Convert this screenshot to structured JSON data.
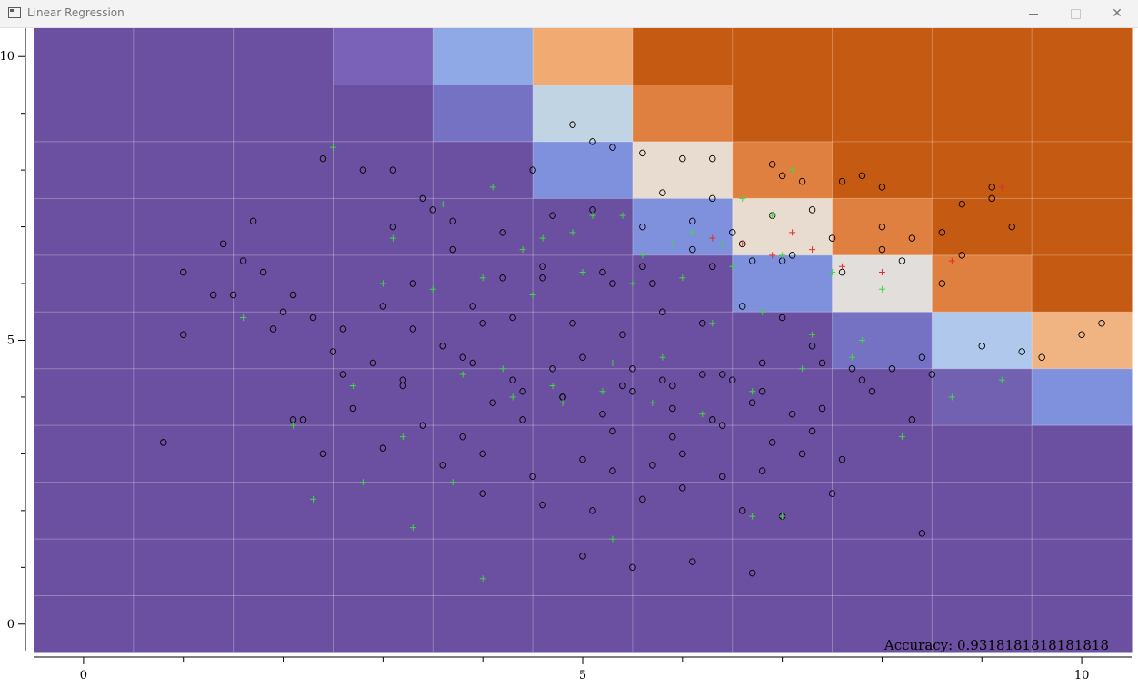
{
  "window": {
    "title": "Linear Regression",
    "icons": {
      "app": "app-window-icon",
      "minimize": "minimize-icon",
      "maximize": "maximize-icon",
      "close": "close-icon"
    }
  },
  "chart_data": {
    "type": "scatter",
    "title": "",
    "xlabel": "",
    "ylabel": "",
    "xlim": [
      -0.5,
      10.5
    ],
    "ylim": [
      -0.5,
      10.5
    ],
    "xticks": [
      "0",
      "5",
      "10"
    ],
    "yticks": [
      "0",
      "5",
      "10"
    ],
    "grid": true,
    "annotation": "Accuracy: 0.9318181818181818",
    "background_grid": {
      "x_edges": [
        -0.5,
        0.5,
        1.5,
        2.5,
        3.5,
        4.5,
        5.5,
        6.5,
        7.5,
        8.5,
        9.5,
        10.5
      ],
      "y_edges": [
        10.5,
        9.5,
        8.5,
        7.5,
        6.5,
        5.5,
        4.5,
        3.5,
        2.5,
        1.5,
        0.5,
        -0.5
      ],
      "colors": [
        [
          "#6b4fa0",
          "#6b4fa0",
          "#6b4fa0",
          "#7a62b8",
          "#8fa8e6",
          "#f0aa72",
          "#c55a12",
          "#c55a12",
          "#c55a12",
          "#c55a12",
          "#c55a12"
        ],
        [
          "#6b4fa0",
          "#6b4fa0",
          "#6b4fa0",
          "#6b4fa0",
          "#7572c4",
          "#c0d4e3",
          "#e08040",
          "#c55a12",
          "#c55a12",
          "#c55a12",
          "#c55a12"
        ],
        [
          "#6b4fa0",
          "#6b4fa0",
          "#6b4fa0",
          "#6b4fa0",
          "#6b4fa0",
          "#7f90dc",
          "#e8dbcf",
          "#e08040",
          "#c55a12",
          "#c55a12",
          "#c55a12"
        ],
        [
          "#6b4fa0",
          "#6b4fa0",
          "#6b4fa0",
          "#6b4fa0",
          "#6b4fa0",
          "#6b4fa0",
          "#7f90dc",
          "#e8dbcf",
          "#e08040",
          "#c55a12",
          "#c55a12"
        ],
        [
          "#6b4fa0",
          "#6b4fa0",
          "#6b4fa0",
          "#6b4fa0",
          "#6b4fa0",
          "#6b4fa0",
          "#6b4fa0",
          "#7f90dc",
          "#e2dedb",
          "#e08040",
          "#c55a12"
        ],
        [
          "#6b4fa0",
          "#6b4fa0",
          "#6b4fa0",
          "#6b4fa0",
          "#6b4fa0",
          "#6b4fa0",
          "#6b4fa0",
          "#6b4fa0",
          "#7572c4",
          "#b0c8eb",
          "#f0b482"
        ],
        [
          "#6b4fa0",
          "#6b4fa0",
          "#6b4fa0",
          "#6b4fa0",
          "#6b4fa0",
          "#6b4fa0",
          "#6b4fa0",
          "#6b4fa0",
          "#6b4fa0",
          "#7161b0",
          "#7f90dc"
        ],
        [
          "#6b4fa0",
          "#6b4fa0",
          "#6b4fa0",
          "#6b4fa0",
          "#6b4fa0",
          "#6b4fa0",
          "#6b4fa0",
          "#6b4fa0",
          "#6b4fa0",
          "#6b4fa0",
          "#6b4fa0"
        ],
        [
          "#6b4fa0",
          "#6b4fa0",
          "#6b4fa0",
          "#6b4fa0",
          "#6b4fa0",
          "#6b4fa0",
          "#6b4fa0",
          "#6b4fa0",
          "#6b4fa0",
          "#6b4fa0",
          "#6b4fa0"
        ],
        [
          "#6b4fa0",
          "#6b4fa0",
          "#6b4fa0",
          "#6b4fa0",
          "#6b4fa0",
          "#6b4fa0",
          "#6b4fa0",
          "#6b4fa0",
          "#6b4fa0",
          "#6b4fa0",
          "#6b4fa0"
        ],
        [
          "#6b4fa0",
          "#6b4fa0",
          "#6b4fa0",
          "#6b4fa0",
          "#6b4fa0",
          "#6b4fa0",
          "#6b4fa0",
          "#6b4fa0",
          "#6b4fa0",
          "#6b4fa0",
          "#6b4fa0"
        ]
      ]
    },
    "series": [
      {
        "marker": "circle",
        "color": "#000000",
        "x": [
          1.0,
          1.4,
          1.0,
          1.6,
          1.8,
          2.3,
          2.4,
          2.8,
          3.1,
          3.4,
          3.5,
          4.0,
          4.5,
          4.9,
          5.1,
          6.0,
          6.3,
          6.9,
          7.2,
          7.8,
          8.0,
          8.8,
          9.1,
          9.3,
          9.6,
          10.2,
          0.8,
          1.3,
          1.7,
          2.1,
          2.6,
          3.0,
          3.3,
          3.7,
          4.2,
          4.6,
          5.3,
          5.6,
          6.1,
          6.6,
          7.0,
          7.5,
          8.2,
          8.6,
          9.4,
          1.5,
          2.0,
          2.5,
          2.9,
          3.2,
          3.6,
          3.9,
          4.3,
          4.7,
          5.0,
          5.4,
          5.8,
          6.2,
          6.5,
          6.8,
          7.3,
          7.7,
          8.1,
          8.5,
          9.0,
          2.2,
          2.7,
          3.4,
          3.8,
          4.1,
          4.4,
          4.8,
          5.2,
          5.5,
          5.9,
          6.3,
          6.7,
          7.1,
          7.4,
          7.9,
          8.3,
          2.4,
          3.0,
          3.6,
          4.0,
          4.5,
          5.0,
          5.3,
          5.7,
          6.0,
          6.4,
          6.8,
          7.2,
          7.6,
          3.3,
          3.9,
          4.3,
          4.9,
          5.4,
          5.8,
          6.2,
          6.6,
          7.0,
          3.1,
          3.7,
          4.2,
          4.7,
          5.1,
          5.6,
          6.1,
          6.5,
          6.9,
          7.3,
          2.6,
          3.2,
          3.8,
          4.4,
          4.8,
          5.5,
          5.9,
          6.4,
          6.8,
          7.4,
          7.8,
          8.4,
          4.6,
          5.2,
          5.7,
          6.3,
          6.7,
          7.1,
          7.6,
          8.0,
          8.6,
          4.0,
          4.6,
          5.1,
          5.6,
          6.0,
          6.6,
          7.0,
          7.5,
          5.3,
          5.9,
          6.4,
          6.9,
          7.3,
          5.0,
          5.5,
          6.1,
          6.7,
          5.8,
          6.3,
          7.0,
          5.3,
          5.6,
          7.6,
          8.0,
          8.3,
          8.8,
          9.1,
          10.0,
          2.1,
          1.9,
          8.4
        ],
        "y": [
          6.2,
          6.7,
          5.1,
          6.4,
          6.2,
          5.4,
          8.2,
          8.0,
          8.0,
          7.5,
          7.3,
          5.3,
          8.0,
          8.8,
          8.5,
          8.2,
          8.2,
          8.1,
          7.8,
          7.9,
          7.7,
          7.4,
          7.7,
          7.0,
          4.7,
          5.3,
          3.2,
          5.8,
          7.1,
          5.8,
          5.2,
          5.6,
          6.0,
          6.6,
          6.1,
          6.3,
          6.0,
          6.3,
          6.6,
          6.7,
          6.4,
          6.8,
          6.4,
          6.0,
          4.8,
          5.8,
          5.5,
          4.8,
          4.6,
          4.2,
          4.9,
          4.6,
          4.3,
          4.5,
          4.7,
          4.2,
          4.3,
          4.4,
          4.3,
          4.6,
          4.9,
          4.5,
          4.5,
          4.4,
          4.9,
          3.6,
          3.8,
          3.5,
          3.3,
          3.9,
          3.6,
          4.0,
          3.7,
          4.1,
          3.8,
          3.6,
          3.9,
          3.7,
          3.8,
          4.1,
          3.6,
          3.0,
          3.1,
          2.8,
          3.0,
          2.6,
          2.9,
          2.7,
          2.8,
          3.0,
          2.6,
          2.7,
          3.0,
          2.9,
          5.2,
          5.6,
          5.4,
          5.3,
          5.1,
          5.5,
          5.3,
          5.6,
          5.4,
          7.0,
          7.1,
          6.9,
          7.2,
          7.3,
          7.0,
          7.1,
          6.9,
          7.2,
          7.3,
          4.4,
          4.3,
          4.7,
          4.1,
          4.0,
          4.5,
          4.2,
          4.4,
          4.1,
          4.6,
          4.3,
          4.7,
          6.1,
          6.2,
          6.0,
          6.3,
          6.4,
          6.5,
          6.2,
          6.6,
          6.9,
          2.3,
          2.1,
          2.0,
          2.2,
          2.4,
          2.0,
          1.9,
          2.3,
          3.4,
          3.3,
          3.5,
          3.2,
          3.4,
          1.2,
          1.0,
          1.1,
          0.9,
          7.6,
          7.5,
          7.9,
          8.4,
          8.3,
          7.8,
          7.0,
          6.8,
          6.5,
          7.5,
          5.1,
          3.6,
          5.2,
          1.6
        ],
        "name": ""
      },
      {
        "marker": "plus",
        "color": "#3fd83f",
        "x": [
          2.5,
          1.6,
          2.1,
          2.7,
          3.2,
          3.7,
          4.2,
          4.7,
          5.2,
          5.7,
          6.2,
          6.7,
          7.2,
          7.7,
          8.2,
          8.7,
          9.2,
          3.0,
          3.5,
          4.0,
          4.5,
          5.0,
          5.5,
          6.0,
          6.5,
          7.0,
          7.5,
          8.0,
          2.3,
          2.8,
          3.3,
          3.8,
          4.3,
          4.8,
          5.3,
          5.8,
          6.3,
          6.8,
          7.3,
          7.8,
          3.1,
          3.6,
          4.1,
          4.6,
          5.1,
          5.6,
          6.1,
          6.6,
          7.1,
          4.4,
          4.9,
          5.4,
          5.9,
          6.4,
          6.9,
          4.0,
          5.3,
          6.7,
          7.0
        ],
        "y": [
          8.4,
          5.4,
          3.5,
          4.2,
          3.3,
          2.5,
          4.5,
          4.2,
          4.1,
          3.9,
          3.7,
          4.1,
          4.5,
          4.7,
          3.3,
          4.0,
          4.3,
          6.0,
          5.9,
          6.1,
          5.8,
          6.2,
          6.0,
          6.1,
          6.3,
          6.5,
          6.2,
          5.9,
          2.2,
          2.5,
          1.7,
          4.4,
          4.0,
          3.9,
          4.6,
          4.7,
          5.3,
          5.5,
          5.1,
          5.0,
          6.8,
          7.4,
          7.7,
          6.8,
          7.2,
          6.5,
          6.9,
          7.5,
          8.0,
          6.6,
          6.9,
          7.2,
          6.7,
          6.7,
          7.2,
          0.8,
          1.5,
          1.9,
          1.9
        ],
        "name": ""
      },
      {
        "marker": "plus",
        "color": "#e03030",
        "x": [
          6.3,
          6.6,
          6.9,
          7.1,
          7.3,
          7.6,
          8.0,
          8.7,
          9.2
        ],
        "y": [
          6.8,
          6.7,
          6.5,
          6.9,
          6.6,
          6.3,
          6.2,
          6.4,
          7.7
        ],
        "name": ""
      }
    ]
  }
}
